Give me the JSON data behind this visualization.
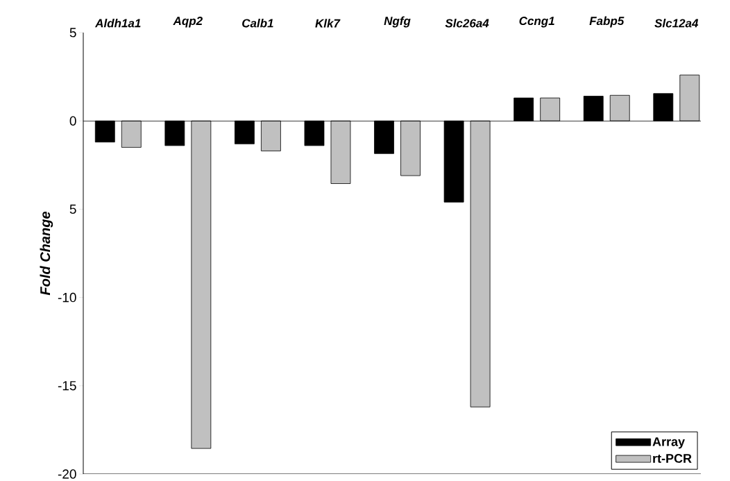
{
  "chart_data": {
    "type": "bar",
    "ylabel": "Fold Change",
    "categories": [
      "Aldh1a1",
      "Aqp2",
      "Calb1",
      "Klk7",
      "Ngfg",
      "Slc26a4",
      "Ccng1",
      "Fabp5",
      "Slc12a4"
    ],
    "series": [
      {
        "name": "Array",
        "color": "#000000",
        "values": [
          -1.2,
          -1.4,
          -1.3,
          -1.4,
          -1.85,
          -4.6,
          1.3,
          1.4,
          1.55
        ]
      },
      {
        "name": "rt-PCR",
        "color": "#c0c0c0",
        "values": [
          -1.5,
          -18.55,
          -1.7,
          -3.55,
          -3.1,
          -16.2,
          1.3,
          1.45,
          2.6
        ]
      }
    ],
    "ylim": [
      -20,
      5
    ],
    "yticks": [
      5,
      0,
      {
        "value": -5,
        "label": "5"
      },
      -10,
      -15,
      -20
    ],
    "legend": "bottom right"
  }
}
